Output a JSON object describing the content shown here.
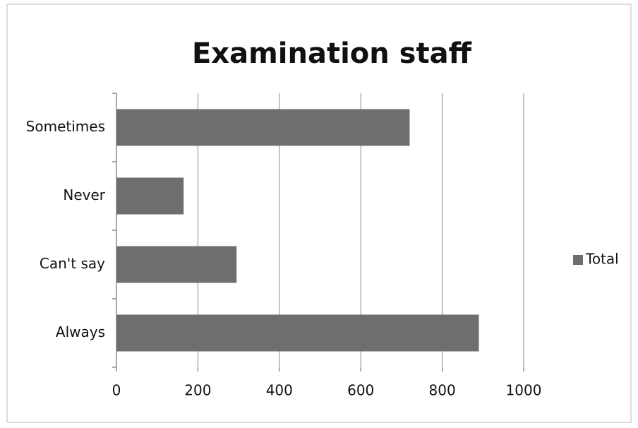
{
  "chart_data": {
    "type": "bar",
    "orientation": "horizontal",
    "title": "Examination staff",
    "categories": [
      "Sometimes",
      "Never",
      "Can't say",
      "Always"
    ],
    "series": [
      {
        "name": "Total",
        "color": "#6e6e6e",
        "values": [
          720,
          165,
          295,
          890
        ]
      }
    ],
    "xlim": [
      0,
      1000
    ],
    "xticks": [
      0,
      200,
      400,
      600,
      800,
      1000
    ],
    "grid": true,
    "legend": "right"
  }
}
